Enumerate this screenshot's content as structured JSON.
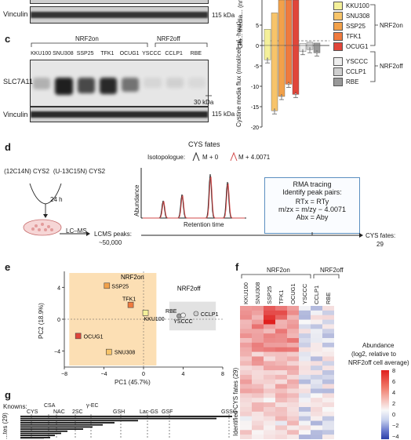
{
  "panel_top": {
    "vinculin_label": "Vinculin",
    "kda_115": "115 kDa"
  },
  "chart_b": {
    "ylabel": "Glu... media... (nmol/ce...",
    "ylabel_bottom": "Cystine media flux (nmol/cell·μL·hour)",
    "yticks_top": [
      "5",
      "0"
    ],
    "yticks_bottom": [
      "-5",
      "-10",
      "-15",
      "-20"
    ],
    "legend": [
      "KKU100",
      "SNU308",
      "SSP25",
      "TFK1",
      "OCUG1",
      "YSCCC",
      "CCLP1",
      "RBE"
    ],
    "legend_colors": [
      "#f4f09a",
      "#f7c46a",
      "#f2a14a",
      "#ef7a3e",
      "#e0453a",
      "#eeeeee",
      "#cfcfcf",
      "#999999"
    ],
    "nrf2_on": "NRF2on",
    "nrf2_off": "NRF2off",
    "chart_data": {
      "type": "bar",
      "categories": [
        "KKU100",
        "SNU308",
        "SSP25",
        "TFK1",
        "OCUG1",
        "YSCCC",
        "CCLP1",
        "RBE"
      ],
      "values_bottom": [
        -3.5,
        -16,
        -12.5,
        -9.5,
        -12,
        -1.5,
        -1,
        -1.8
      ],
      "ylim": [
        -20,
        5
      ]
    }
  },
  "panel_c": {
    "label": "c",
    "nrf2_on": "NRF2on",
    "nrf2_off": "NRF2off",
    "lanes": [
      "KKU100",
      "SNU308",
      "SSP25",
      "TFK1",
      "OCUG1",
      "YSCCC",
      "CCLP1",
      "RBE"
    ],
    "slc_label": "SLC7A11",
    "vinculin_label": "Vinculin",
    "kda_30": "30 kDa",
    "kda_115": "115 kDa"
  },
  "panel_d": {
    "label": "d",
    "cys_fates_title": "CYS fates",
    "isotopologue_label": "Isotopologue:",
    "m0": "M + 0",
    "m4": "M + 4.0071",
    "abundance": "Abundance",
    "retention": "Retention time",
    "rma_title": "RMA tracing",
    "rma_sub": "Identify peak pairs:",
    "rma_rt": "RTx = RTy",
    "rma_mz": "m/zx = m/zy − 4.0071",
    "rma_ab": "Abx = Aby",
    "left_label": "(12C14N) CYS2",
    "right_label": "(U-13C15N) CYS2",
    "hours": "24 h",
    "lcms": "LC–MS",
    "lcms_peaks": "LCMS peaks:",
    "lcms_peaks_n": "~50,000",
    "cys_fates_n_label": "CYS fates:",
    "cys_fates_n": "29"
  },
  "panel_e": {
    "label": "e",
    "xlabel": "PC1 (45.7%)",
    "ylabel": "PC2 (18.9%)",
    "nrf2_on": "NRF2on",
    "nrf2_off": "NRF2off",
    "xticks": [
      "−8",
      "−4",
      "0",
      "4",
      "8"
    ],
    "yticks": [
      "4",
      "0",
      "−4"
    ],
    "chart_data": {
      "type": "scatter",
      "points": [
        {
          "name": "SSP25",
          "x": -3.7,
          "y": 4.2,
          "color": "#f2a14a"
        },
        {
          "name": "TFK1",
          "x": -1.3,
          "y": 1.8,
          "color": "#ef7a3e"
        },
        {
          "name": "KKU100",
          "x": 0.2,
          "y": 0.8,
          "color": "#f4f09a"
        },
        {
          "name": "OCUG1",
          "x": -6.6,
          "y": -2.1,
          "color": "#e0453a"
        },
        {
          "name": "SNU308",
          "x": -3.5,
          "y": -4.1,
          "color": "#f7c46a"
        },
        {
          "name": "RBE",
          "x": 3.6,
          "y": 0.4,
          "color": "#999999"
        },
        {
          "name": "YSCCC",
          "x": 4.0,
          "y": 0.5,
          "color": "#eeeeee"
        },
        {
          "name": "CCLP1",
          "x": 5.3,
          "y": 0.7,
          "color": "#cfcfcf"
        }
      ],
      "xlim": [
        -8,
        8
      ],
      "ylim": [
        -6,
        6
      ]
    }
  },
  "panel_f": {
    "label": "f",
    "nrf2_on": "NRF2on",
    "nrf2_off": "NRF2off",
    "columns": [
      "KKU100",
      "SNU308",
      "SSP25",
      "TFK1",
      "OCUG1",
      "YSCCC",
      "CCLP1",
      "RBE"
    ],
    "ylabel": "Identified CYS fates (29)",
    "legend_title_1": "Abundance",
    "legend_title_2": "(log2, relative to",
    "legend_title_3": "NRF2off cell average)",
    "legend_ticks": [
      "8",
      "6",
      "4",
      "2",
      "0",
      "−2",
      "−4"
    ]
  },
  "panel_g": {
    "label": "g",
    "knowns_label": "Knowns:",
    "knowns": [
      "CYS",
      "CSA",
      "NAC",
      "2SC",
      "γ-EC",
      "GSH",
      "Lac-GS",
      "GSF",
      "GSSG"
    ],
    "ylabel": "...tes (29)"
  }
}
